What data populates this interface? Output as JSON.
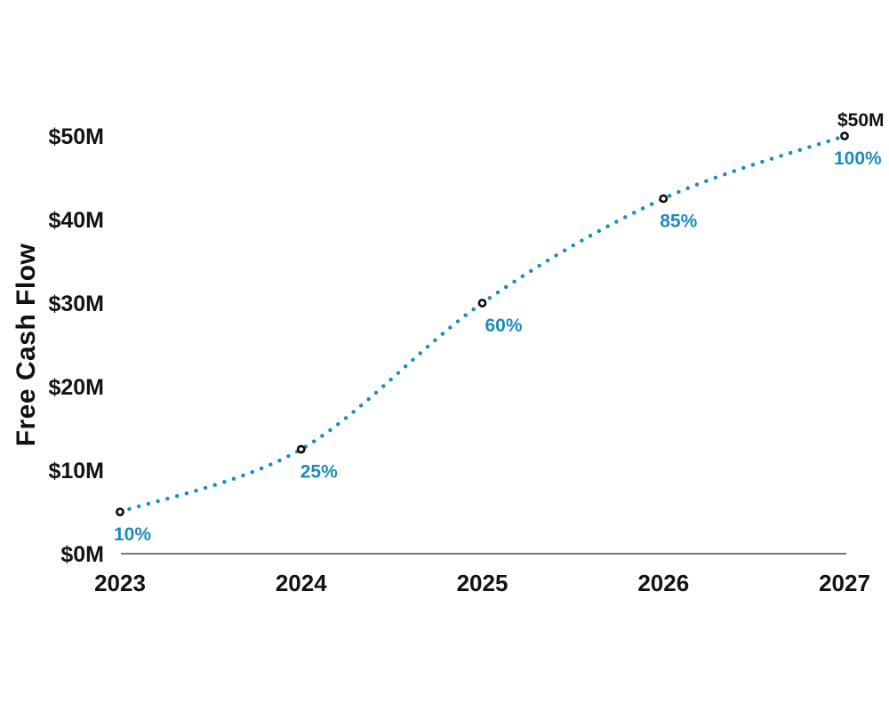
{
  "chart_data": {
    "type": "line",
    "title": "",
    "ylabel": "Free Cash Flow",
    "xlabel": "",
    "x": [
      "2023",
      "2024",
      "2025",
      "2026",
      "2027"
    ],
    "series": [
      {
        "name": "Free Cash Flow ($M)",
        "values": [
          5,
          12.5,
          30,
          42.5,
          50
        ]
      }
    ],
    "point_labels": [
      "10%",
      "25%",
      "60%",
      "85%",
      "100%"
    ],
    "end_annotation": "$50M",
    "yticks": [
      {
        "label": "$0M",
        "value": 0
      },
      {
        "label": "$10M",
        "value": 10
      },
      {
        "label": "$20M",
        "value": 20
      },
      {
        "label": "$30M",
        "value": 30
      },
      {
        "label": "$40M",
        "value": 40
      },
      {
        "label": "$50M",
        "value": 50
      }
    ],
    "ylim": [
      0,
      50
    ],
    "grid": false,
    "legend": "none",
    "line_style": "dotted",
    "marker_style": "open-circle",
    "colors": {
      "line": "#1e8cba",
      "point_label": "#1e8cba",
      "marker_fill": "#ffffff",
      "marker_stroke": "#0a0a0a",
      "text": "#131313",
      "axis": "#4a4a4a",
      "background": "#ffffff"
    }
  }
}
